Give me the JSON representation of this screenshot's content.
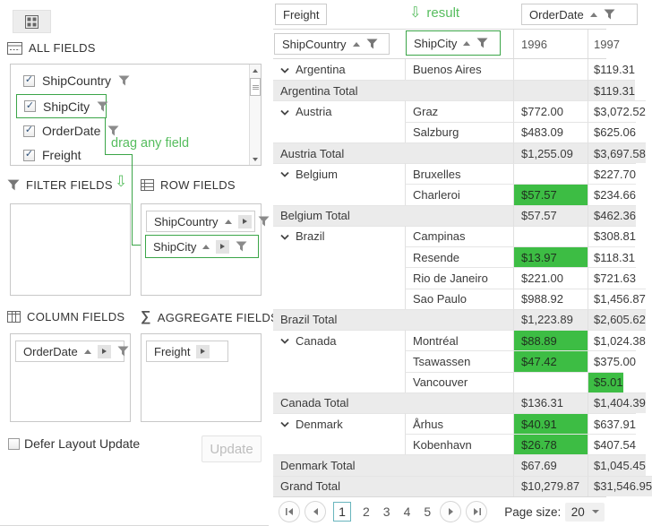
{
  "colors": {
    "accent_green": "#3ba548",
    "annotation_green": "#56bd5e",
    "cell_green": "#3dbd44",
    "pager_selected_border": "#68b5bd"
  },
  "left_panel": {
    "all_fields": {
      "title": "ALL FIELDS",
      "items": [
        {
          "label": "ShipCountry",
          "checked": true,
          "filter": true
        },
        {
          "label": "ShipCity",
          "checked": true,
          "filter": true,
          "highlighted": true
        },
        {
          "label": "OrderDate",
          "checked": true,
          "filter": true
        },
        {
          "label": "Freight",
          "checked": true,
          "filter": false
        }
      ]
    },
    "annotations": {
      "drag_any_field": "drag any field",
      "result": "result"
    },
    "filter_fields": {
      "title": "FILTER FIELDS"
    },
    "row_fields": {
      "title": "ROW FIELDS",
      "chips": [
        {
          "label": "ShipCountry",
          "sort": "asc"
        },
        {
          "label": "ShipCity",
          "sort": "asc",
          "highlighted": true
        }
      ]
    },
    "column_fields": {
      "title": "COLUMN FIELDS",
      "chips": [
        {
          "label": "OrderDate",
          "sort": "asc"
        }
      ]
    },
    "aggregate_fields": {
      "title": "AGGREGATE FIELDS",
      "chips": [
        {
          "label": "Freight"
        }
      ]
    },
    "defer_label": "Defer Layout Update",
    "defer_checked": false,
    "update_button": "Update"
  },
  "pivot": {
    "data_field_chip": "Freight",
    "column_field_chip": "OrderDate",
    "row_field_chips": [
      "ShipCountry",
      "ShipCity"
    ],
    "column_headers": [
      "1996",
      "1997"
    ],
    "rows": [
      {
        "type": "city-first",
        "country": "Argentina",
        "city": "Buenos Aires",
        "y1996": "",
        "y1996_green": false,
        "y1997": "$119.31",
        "y1997_green": false
      },
      {
        "type": "total",
        "label": "Argentina Total",
        "y1996": "",
        "y1997": "$119.31"
      },
      {
        "type": "city-first",
        "country": "Austria",
        "city": "Graz",
        "y1996": "$772.00",
        "y1996_green": false,
        "y1997": "$3,072.52",
        "y1997_green": false
      },
      {
        "type": "city",
        "city": "Salzburg",
        "y1996": "$483.09",
        "y1996_green": false,
        "y1997": "$625.06",
        "y1997_green": false
      },
      {
        "type": "total",
        "label": "Austria Total",
        "y1996": "$1,255.09",
        "y1997": "$3,697.58"
      },
      {
        "type": "city-first",
        "country": "Belgium",
        "city": "Bruxelles",
        "y1996": "",
        "y1996_green": false,
        "y1997": "$227.70",
        "y1997_green": false
      },
      {
        "type": "city",
        "city": "Charleroi",
        "y1996": "$57.57",
        "y1996_green": true,
        "y1997": "$234.66",
        "y1997_green": false
      },
      {
        "type": "total",
        "label": "Belgium Total",
        "y1996": "$57.57",
        "y1997": "$462.36"
      },
      {
        "type": "city-first",
        "country": "Brazil",
        "city": "Campinas",
        "y1996": "",
        "y1996_green": false,
        "y1997": "$308.81",
        "y1997_green": false
      },
      {
        "type": "city",
        "city": "Resende",
        "y1996": "$13.97",
        "y1996_green": true,
        "y1997": "$118.31",
        "y1997_green": false
      },
      {
        "type": "city",
        "city": "Rio de Janeiro",
        "y1996": "$221.00",
        "y1996_green": false,
        "y1997": "$721.63",
        "y1997_green": false
      },
      {
        "type": "city",
        "city": "Sao Paulo",
        "y1996": "$988.92",
        "y1996_green": false,
        "y1997": "$1,456.87",
        "y1997_green": false
      },
      {
        "type": "total",
        "label": "Brazil Total",
        "y1996": "$1,223.89",
        "y1997": "$2,605.62"
      },
      {
        "type": "city-first",
        "country": "Canada",
        "city": "Montréal",
        "y1996": "$88.89",
        "y1996_green": true,
        "y1997": "$1,024.38",
        "y1997_green": false
      },
      {
        "type": "city",
        "city": "Tsawassen",
        "y1996": "$47.42",
        "y1996_green": true,
        "y1997": "$375.00",
        "y1997_green": false
      },
      {
        "type": "city",
        "city": "Vancouver",
        "y1996": "",
        "y1996_green": false,
        "y1997": "$5.01",
        "y1997_green": true
      },
      {
        "type": "total",
        "label": "Canada Total",
        "y1996": "$136.31",
        "y1997": "$1,404.39"
      },
      {
        "type": "city-first",
        "country": "Denmark",
        "city": "Århus",
        "y1996": "$40.91",
        "y1996_green": true,
        "y1997": "$637.91",
        "y1997_green": false
      },
      {
        "type": "city",
        "city": "Kobenhavn",
        "y1996": "$26.78",
        "y1996_green": true,
        "y1997": "$407.54",
        "y1997_green": false
      },
      {
        "type": "total",
        "label": "Denmark Total",
        "y1996": "$67.69",
        "y1997": "$1,045.45"
      },
      {
        "type": "grand",
        "label": "Grand Total",
        "y1996": "$10,279.87",
        "y1997": "$31,546.95"
      }
    ]
  },
  "pager": {
    "pages": [
      "1",
      "2",
      "3",
      "4",
      "5"
    ],
    "current": "1",
    "page_size_label": "Page size:",
    "page_size": "20"
  }
}
